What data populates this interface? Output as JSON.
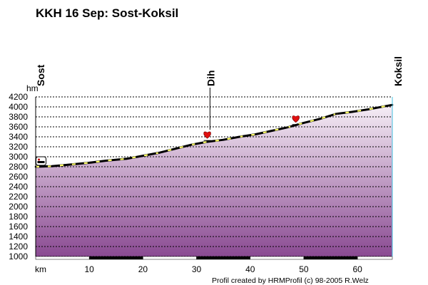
{
  "title": "KKH 16 Sep: Sost-Koksil",
  "credit": "Profil created by HRMProfil (c) 98-2005 R.Welz",
  "chart_data": {
    "type": "area",
    "title": "KKH 16 Sep: Sost-Koksil",
    "xlabel": "km",
    "ylabel": "hm",
    "xlim": [
      0,
      66.5
    ],
    "ylim": [
      1000,
      4200
    ],
    "x_ticks": [
      10,
      20,
      30,
      40,
      50,
      60
    ],
    "y_ticks": [
      1000,
      1200,
      1400,
      1600,
      1800,
      2000,
      2200,
      2400,
      2600,
      2800,
      3000,
      3200,
      3400,
      3600,
      3800,
      4000,
      4200
    ],
    "grid": true,
    "series": [
      {
        "x": [
          0,
          3,
          6,
          10,
          13,
          17,
          20,
          23,
          26,
          29,
          32,
          35,
          38,
          41,
          44,
          47,
          50,
          53,
          56,
          59,
          62,
          64,
          66.5
        ],
        "y": [
          2800,
          2810,
          2840,
          2880,
          2920,
          2960,
          3020,
          3080,
          3160,
          3240,
          3300,
          3340,
          3400,
          3450,
          3520,
          3590,
          3680,
          3760,
          3860,
          3900,
          3950,
          3990,
          4040
        ]
      }
    ],
    "places": [
      {
        "label": "Sost",
        "km": 0
      },
      {
        "label": "Dih",
        "km": 32.5
      },
      {
        "label": "Koksil",
        "km": 66.5
      }
    ],
    "markers": [
      {
        "km": 1,
        "elev": 2900,
        "icon": "hotel-icon"
      },
      {
        "km": 32,
        "elev": 3440,
        "icon": "heart-icon"
      },
      {
        "km": 48.5,
        "elev": 3760,
        "icon": "heart-icon"
      }
    ],
    "colors": {
      "area_top": "#f6eef6",
      "area_bottom": "#8a4a92",
      "profile_line": "#000000",
      "highlight": "#ffff66",
      "x_axis_band": "#000000"
    }
  }
}
